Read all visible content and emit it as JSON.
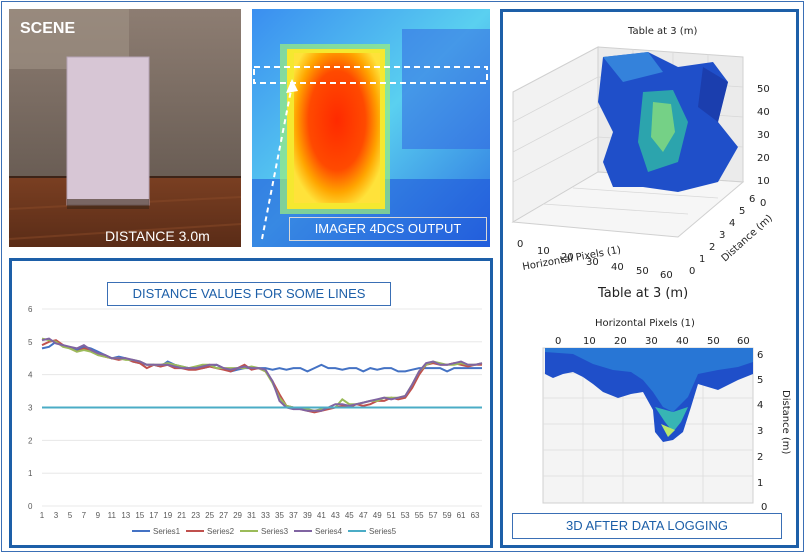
{
  "scene": {
    "label": "SCENE",
    "distance_label": "DISTANCE 3.0m"
  },
  "imager": {
    "label": "IMAGER 4DCS OUTPUT"
  },
  "plot3d_top": {
    "title": "Table at 3 (m)",
    "x_label": "Horizontal Pixels (1)",
    "y_label": "Distance (m)",
    "x_ticks": [
      "0",
      "10",
      "20",
      "30",
      "40",
      "50",
      "60"
    ],
    "y_ticks": [
      "0",
      "1",
      "2",
      "3",
      "4",
      "5",
      "6"
    ],
    "z_ticks": [
      "0",
      "10",
      "20",
      "30",
      "40",
      "50"
    ]
  },
  "plot3d_bottom": {
    "title": "Table at 3 (m)",
    "x_label": "Horizontal Pixels (1)",
    "z_label": "Distance (m)",
    "x_ticks": [
      "0",
      "10",
      "20",
      "30",
      "40",
      "50",
      "60"
    ],
    "z_ticks": [
      "6",
      "5",
      "4",
      "3",
      "2",
      "1",
      "0"
    ]
  },
  "caption_3d": "3D AFTER DATA LOGGING",
  "chart_data": {
    "type": "line",
    "title": "DISTANCE VALUES FOR SOME LINES",
    "ylim": [
      0,
      6
    ],
    "y_ticks": [
      "0",
      "1",
      "2",
      "3",
      "4",
      "5",
      "6"
    ],
    "x_tick_labels": [
      "1",
      "3",
      "5",
      "7",
      "9",
      "11",
      "13",
      "15",
      "17",
      "19",
      "21",
      "23",
      "25",
      "27",
      "29",
      "31",
      "33",
      "35",
      "37",
      "39",
      "41",
      "43",
      "45",
      "47",
      "49",
      "51",
      "53",
      "55",
      "57",
      "59",
      "61",
      "63"
    ],
    "series": [
      {
        "name": "Series1",
        "color": "#4472c4",
        "values": [
          4.8,
          4.85,
          5.0,
          4.9,
          4.8,
          4.75,
          4.85,
          4.8,
          4.7,
          4.6,
          4.5,
          4.55,
          4.5,
          4.4,
          4.35,
          4.3,
          4.3,
          4.25,
          4.4,
          4.3,
          4.25,
          4.2,
          4.2,
          4.2,
          4.25,
          4.3,
          4.2,
          4.1,
          4.15,
          4.2,
          4.2,
          4.2,
          4.2,
          4.15,
          4.2,
          4.15,
          4.2,
          4.2,
          4.1,
          4.2,
          4.3,
          4.2,
          4.2,
          4.15,
          4.2,
          4.2,
          4.1,
          4.2,
          4.15,
          4.2,
          4.2,
          4.1,
          4.1,
          4.15,
          4.2,
          4.2,
          4.2,
          4.2,
          4.1,
          4.2,
          4.2,
          4.2,
          4.2,
          4.2
        ]
      },
      {
        "name": "Series2",
        "color": "#c0504d",
        "values": [
          4.9,
          5.0,
          5.05,
          4.9,
          4.8,
          4.7,
          4.8,
          4.75,
          4.6,
          4.55,
          4.5,
          4.45,
          4.5,
          4.4,
          4.35,
          4.2,
          4.3,
          4.25,
          4.3,
          4.2,
          4.2,
          4.15,
          4.15,
          4.2,
          4.25,
          4.2,
          4.15,
          4.1,
          4.2,
          4.3,
          4.15,
          4.2,
          4.1,
          3.8,
          3.4,
          3.05,
          3.0,
          2.95,
          2.9,
          2.85,
          2.9,
          2.95,
          3.0,
          3.05,
          3.0,
          3.1,
          3.05,
          3.1,
          3.2,
          3.2,
          3.3,
          3.25,
          3.3,
          3.6,
          4.0,
          4.3,
          4.35,
          4.3,
          4.3,
          4.35,
          4.3,
          4.25,
          4.3,
          4.3
        ]
      },
      {
        "name": "Series3",
        "color": "#9bbb59",
        "values": [
          5.1,
          5.05,
          5.0,
          4.85,
          4.8,
          4.7,
          4.75,
          4.7,
          4.6,
          4.55,
          4.5,
          4.5,
          4.45,
          4.45,
          4.4,
          4.3,
          4.3,
          4.3,
          4.35,
          4.3,
          4.25,
          4.2,
          4.25,
          4.3,
          4.3,
          4.2,
          4.2,
          4.2,
          4.2,
          4.2,
          4.25,
          4.2,
          4.1,
          3.75,
          3.3,
          3.05,
          3.0,
          3.0,
          2.95,
          2.9,
          2.95,
          3.0,
          3.0,
          3.25,
          3.1,
          3.1,
          3.15,
          3.2,
          3.2,
          3.3,
          3.3,
          3.3,
          3.35,
          3.7,
          4.1,
          4.3,
          4.4,
          4.35,
          4.3,
          4.3,
          4.35,
          4.3,
          4.3,
          4.35
        ]
      },
      {
        "name": "Series4",
        "color": "#8064a2",
        "values": [
          5.05,
          5.1,
          4.95,
          4.9,
          4.85,
          4.8,
          4.9,
          4.75,
          4.65,
          4.6,
          4.5,
          4.5,
          4.5,
          4.45,
          4.4,
          4.3,
          4.3,
          4.3,
          4.3,
          4.25,
          4.2,
          4.2,
          4.2,
          4.25,
          4.3,
          4.3,
          4.2,
          4.15,
          4.2,
          4.25,
          4.2,
          4.2,
          4.15,
          3.8,
          3.2,
          3.0,
          2.95,
          2.95,
          2.9,
          2.9,
          2.9,
          3.0,
          3.1,
          3.1,
          3.05,
          3.1,
          3.15,
          3.2,
          3.25,
          3.3,
          3.25,
          3.3,
          3.35,
          3.7,
          4.1,
          4.35,
          4.4,
          4.3,
          4.3,
          4.35,
          4.4,
          4.3,
          4.3,
          4.35
        ]
      },
      {
        "name": "Series5",
        "color": "#4bacc6",
        "values": [
          3,
          3,
          3,
          3,
          3,
          3,
          3,
          3,
          3,
          3,
          3,
          3,
          3,
          3,
          3,
          3,
          3,
          3,
          3,
          3,
          3,
          3,
          3,
          3,
          3,
          3,
          3,
          3,
          3,
          3,
          3,
          3,
          3,
          3,
          3,
          3,
          3,
          3,
          3,
          3,
          3,
          3,
          3,
          3,
          3,
          3,
          3,
          3,
          3,
          3,
          3,
          3,
          3,
          3,
          3,
          3,
          3,
          3,
          3,
          3,
          3,
          3,
          3,
          3
        ]
      }
    ]
  }
}
